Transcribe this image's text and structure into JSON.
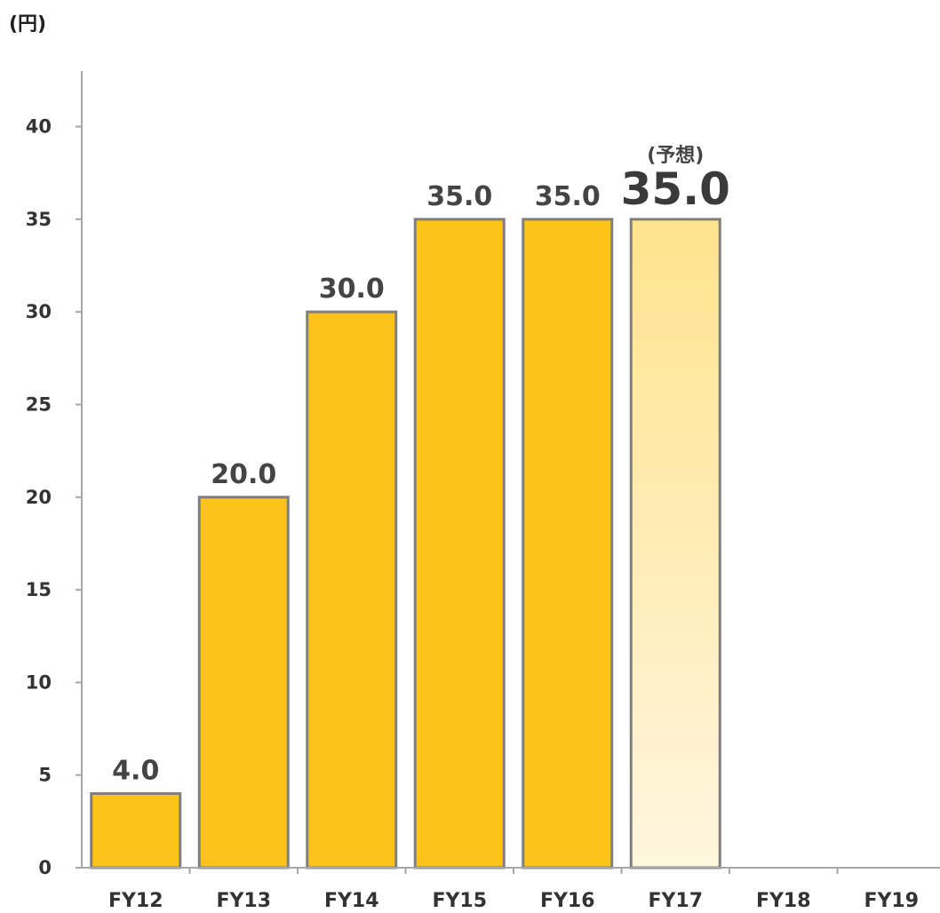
{
  "chart_data": {
    "type": "bar",
    "unit_label": "(円)",
    "categories": [
      "FY12",
      "FY13",
      "FY14",
      "FY15",
      "FY16",
      "FY17",
      "FY18",
      "FY19"
    ],
    "values": [
      4.0,
      20.0,
      30.0,
      35.0,
      35.0,
      35.0,
      null,
      null
    ],
    "value_labels": [
      "4.0",
      "20.0",
      "30.0",
      "35.0",
      "35.0",
      "35.0",
      "",
      ""
    ],
    "forecast_index": 5,
    "forecast_label": "(予想)",
    "y_ticks": [
      "0",
      "5",
      "10",
      "15",
      "20",
      "25",
      "30",
      "35",
      "40"
    ],
    "ylim": [
      0,
      43
    ],
    "grid": false,
    "colors": {
      "bar": "#FDC319",
      "bar_forecast_top": "#FFE38C",
      "bar_forecast_bottom": "#FFF6DF",
      "bar_border": "#7F7F7F",
      "axis": "#A6A6A6"
    }
  }
}
